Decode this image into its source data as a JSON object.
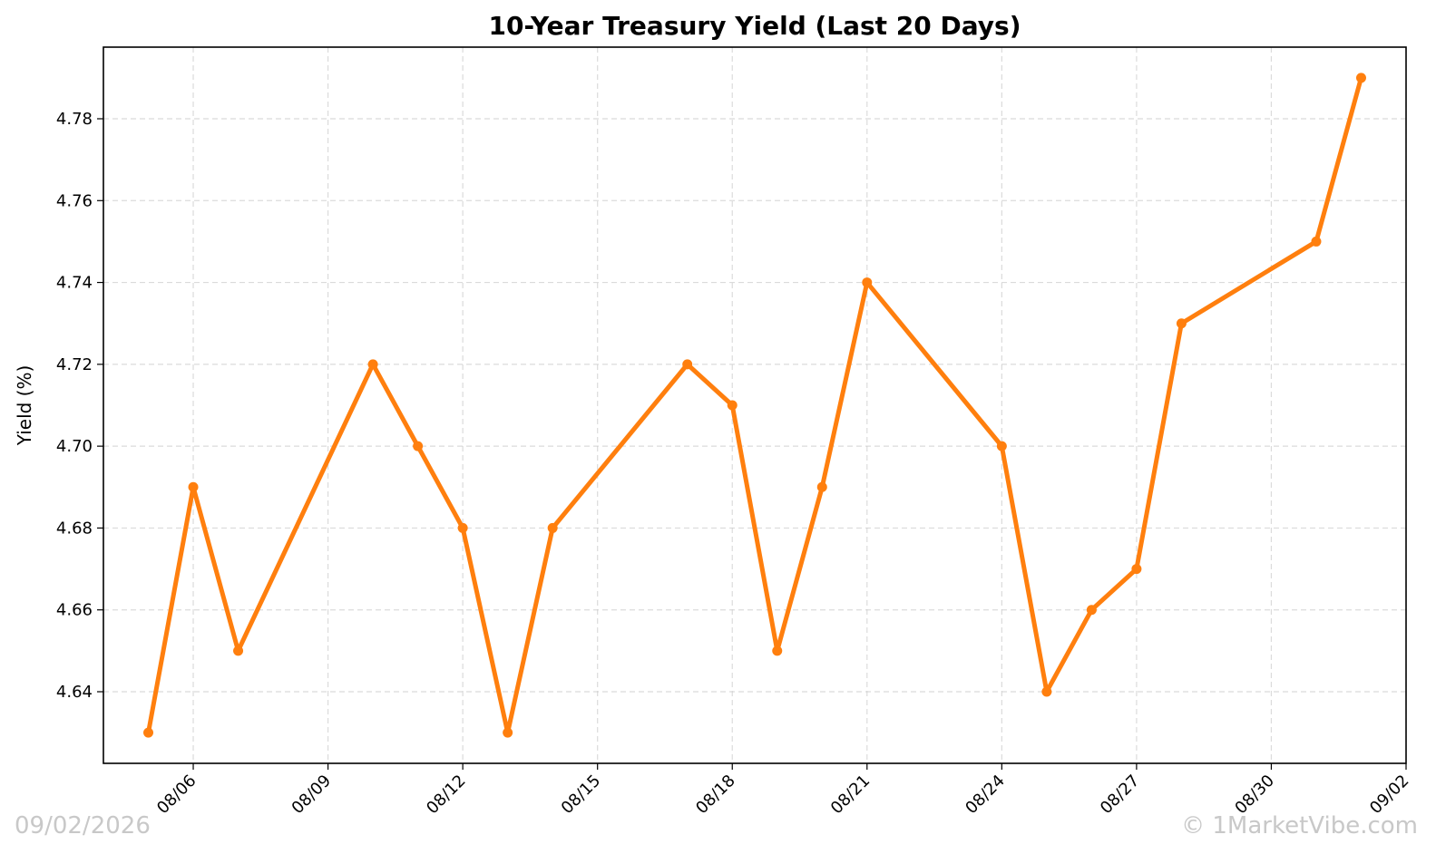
{
  "chart_data": {
    "type": "line",
    "title": "10-Year Treasury Yield (Last 20 Days)",
    "xlabel": "",
    "ylabel": "Yield (%)",
    "x": [
      "2026-08-05",
      "2026-08-06",
      "2026-08-07",
      "2026-08-10",
      "2026-08-11",
      "2026-08-12",
      "2026-08-13",
      "2026-08-14",
      "2026-08-17",
      "2026-08-18",
      "2026-08-19",
      "2026-08-20",
      "2026-08-21",
      "2026-08-24",
      "2026-08-25",
      "2026-08-26",
      "2026-08-27",
      "2026-08-28",
      "2026-08-31",
      "2026-09-01"
    ],
    "series": [
      {
        "values": [
          4.63,
          4.69,
          4.65,
          4.72,
          4.7,
          4.68,
          4.63,
          4.68,
          4.72,
          4.71,
          4.65,
          4.69,
          4.74,
          4.7,
          4.64,
          4.66,
          4.67,
          4.73,
          4.75,
          4.79
        ],
        "color": "#ff7f0e"
      }
    ],
    "xlim": [
      "2026-08-04",
      "2026-09-02"
    ],
    "ylim": [
      4.6225,
      4.7975
    ],
    "xticks": [
      "2026-08-06",
      "2026-08-09",
      "2026-08-12",
      "2026-08-15",
      "2026-08-18",
      "2026-08-21",
      "2026-08-24",
      "2026-08-27",
      "2026-08-30",
      "2026-09-02"
    ],
    "xtick_labels": [
      "08/06",
      "08/09",
      "08/12",
      "08/15",
      "08/18",
      "08/21",
      "08/24",
      "08/27",
      "08/30",
      "09/02"
    ],
    "yticks": [
      4.64,
      4.66,
      4.68,
      4.7,
      4.72,
      4.74,
      4.76,
      4.78
    ],
    "ytick_labels": [
      "4.64",
      "4.66",
      "4.68",
      "4.70",
      "4.72",
      "4.74",
      "4.76",
      "4.78"
    ],
    "grid": true,
    "marker": "circle",
    "legend": "none"
  },
  "watermark": {
    "date": "09/02/2026",
    "credit": "© 1MarketVibe.com"
  }
}
